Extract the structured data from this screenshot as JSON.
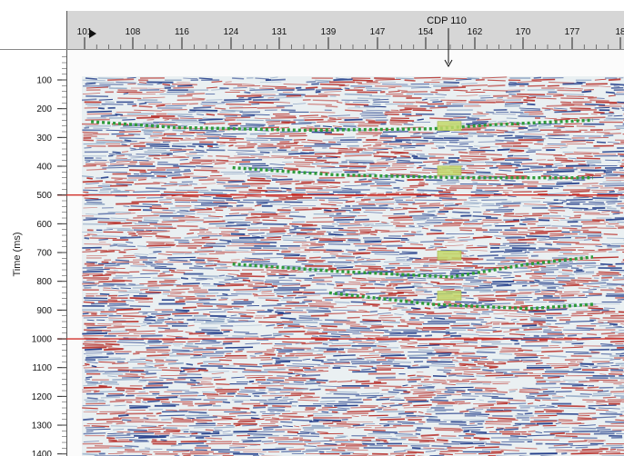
{
  "cdp_axis": {
    "ticks": [
      "101",
      "108",
      "116",
      "124",
      "131",
      "139",
      "147",
      "154",
      "162",
      "170",
      "177",
      "18"
    ]
  },
  "time_axis": {
    "title": "Time (ms)",
    "ticks": [
      "100",
      "200",
      "300",
      "400",
      "500",
      "600",
      "700",
      "800",
      "900",
      "1000",
      "1100",
      "1200",
      "1300",
      "1400"
    ]
  },
  "annotation": {
    "label": "CDP 110"
  },
  "reference_lines_ms": [
    500,
    1000
  ],
  "horizons": [
    {
      "points": [
        [
          102,
          245
        ],
        [
          115,
          265
        ],
        [
          135,
          275
        ],
        [
          155,
          270
        ],
        [
          165,
          255
        ],
        [
          180,
          240
        ]
      ]
    },
    {
      "points": [
        [
          124,
          405
        ],
        [
          140,
          430
        ],
        [
          160,
          440
        ],
        [
          180,
          440
        ]
      ]
    },
    {
      "points": [
        [
          124,
          740
        ],
        [
          140,
          765
        ],
        [
          158,
          785
        ],
        [
          170,
          740
        ],
        [
          180,
          715
        ]
      ]
    },
    {
      "points": [
        [
          139,
          840
        ],
        [
          155,
          880
        ],
        [
          170,
          895
        ],
        [
          180,
          880
        ]
      ]
    }
  ],
  "well_markers_ms": [
    260,
    415,
    710,
    850
  ],
  "colors": {
    "header_bg": "#d6d6d6",
    "reference_line": "#d1302a",
    "horizon": "#2e9b3a",
    "marker": "#c2d86a",
    "wiggle_red": "#b8342f",
    "wiggle_blue": "#233e8a"
  }
}
